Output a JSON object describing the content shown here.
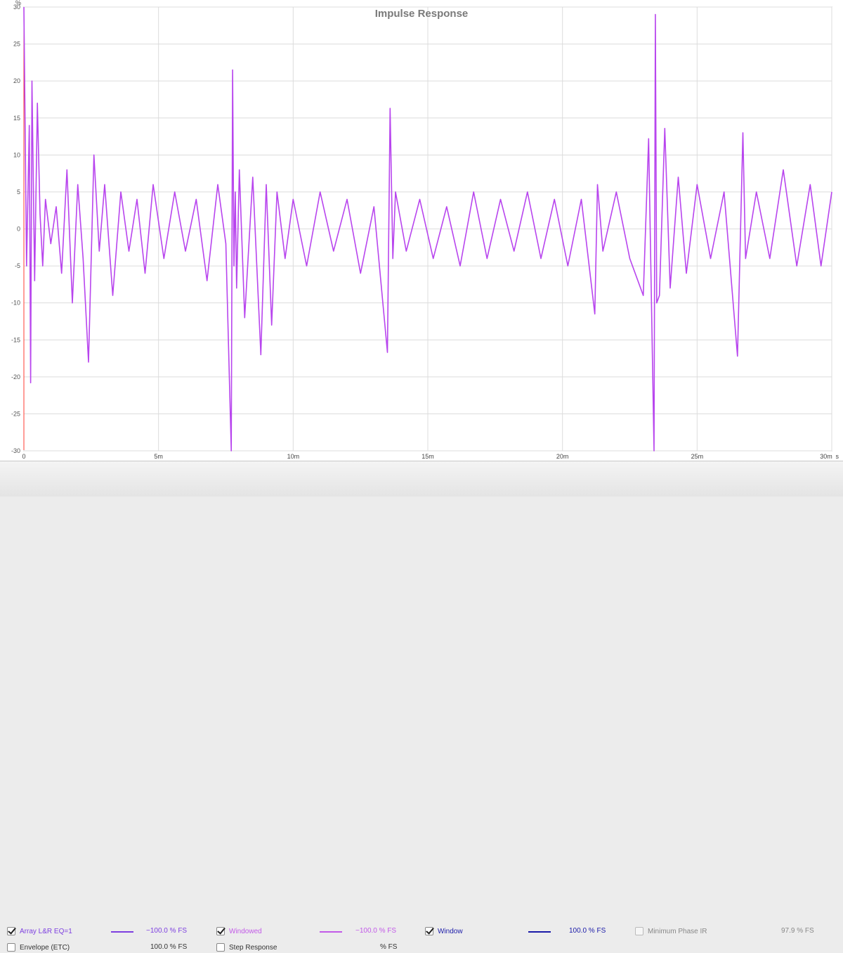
{
  "chart_data": {
    "type": "line",
    "title": "Impulse Response",
    "ylabel": "%",
    "xlabel": "s",
    "ylim": [
      -30,
      30
    ],
    "xlim": [
      0,
      0.03
    ],
    "yticks": [
      "30",
      "25",
      "20",
      "15",
      "10",
      "5",
      "0",
      "-5",
      "-10",
      "-15",
      "-20",
      "-25",
      "-30"
    ],
    "xticks": [
      "0",
      "5m",
      "10m",
      "15m",
      "20m",
      "25m",
      "30m"
    ],
    "x_unit": "s",
    "grid": true,
    "series": [
      {
        "name": "Windowed",
        "color": "#b845ee",
        "x_ms": [
          0,
          0.1,
          0.2,
          0.25,
          0.3,
          0.4,
          0.5,
          0.6,
          0.7,
          0.8,
          1.0,
          1.2,
          1.4,
          1.6,
          1.8,
          2.0,
          2.2,
          2.4,
          2.6,
          2.8,
          3.0,
          3.3,
          3.6,
          3.9,
          4.2,
          4.5,
          4.8,
          5.2,
          5.6,
          6.0,
          6.4,
          6.8,
          7.2,
          7.5,
          7.7,
          7.75,
          7.8,
          7.85,
          7.9,
          8.0,
          8.2,
          8.5,
          8.8,
          9.0,
          9.2,
          9.4,
          9.7,
          10.0,
          10.5,
          11.0,
          11.5,
          12.0,
          12.5,
          13.0,
          13.5,
          13.6,
          13.7,
          13.8,
          14.2,
          14.7,
          15.2,
          15.7,
          16.2,
          16.7,
          17.2,
          17.7,
          18.2,
          18.7,
          19.2,
          19.7,
          20.2,
          20.7,
          21.2,
          21.3,
          21.5,
          22.0,
          22.5,
          23.0,
          23.2,
          23.4,
          23.45,
          23.5,
          23.6,
          23.8,
          24.0,
          24.3,
          24.6,
          25.0,
          25.5,
          26.0,
          26.5,
          26.7,
          26.8,
          27.2,
          27.7,
          28.2,
          28.7,
          29.2,
          29.6,
          30.0
        ],
        "values": [
          30,
          -5,
          14,
          -20.8,
          20,
          -7,
          17,
          2,
          -5,
          4,
          -2,
          3,
          -6,
          8,
          -10,
          6,
          -4,
          -18,
          10,
          -3,
          6,
          -9,
          5,
          -3,
          4,
          -6,
          6,
          -4,
          5,
          -3,
          4,
          -7,
          6,
          -2,
          -30,
          21.5,
          -5,
          5,
          -8,
          8,
          -12,
          7,
          -17,
          6,
          -13,
          5,
          -4,
          4,
          -5,
          5,
          -3,
          4,
          -6,
          3,
          -16.7,
          16.3,
          -4,
          5,
          -3,
          4,
          -4,
          3,
          -5,
          5,
          -4,
          4,
          -3,
          5,
          -4,
          4,
          -5,
          4,
          -11.5,
          6,
          -3,
          5,
          -4,
          -9,
          12.2,
          -30,
          29,
          -10,
          -9,
          13.6,
          -8,
          7,
          -6,
          6,
          -4,
          5,
          -17.2,
          13,
          -4,
          5,
          -4,
          8,
          -5,
          6,
          -5,
          5
        ]
      }
    ]
  },
  "legend": {
    "row1": [
      {
        "label": "Array L&R EQ=1",
        "value": "−100.0 % FS",
        "checked": true,
        "color": "#7d3fe0"
      },
      {
        "label": "Windowed",
        "value": "−100.0 % FS",
        "checked": true,
        "color": "#c25ae8"
      },
      {
        "label": "Window",
        "value": "100.0 % FS",
        "checked": true,
        "color": "#1a1aa8"
      },
      {
        "label": "Minimum Phase IR",
        "value": "97.9 % FS",
        "checked": false,
        "color": "#888888"
      }
    ],
    "row2": [
      {
        "label": "Envelope (ETC)",
        "value": "100.0 % FS",
        "checked": false,
        "color": "#333333"
      },
      {
        "label": "Step Response",
        "value": "% FS",
        "checked": false,
        "color": "#333333"
      }
    ]
  }
}
